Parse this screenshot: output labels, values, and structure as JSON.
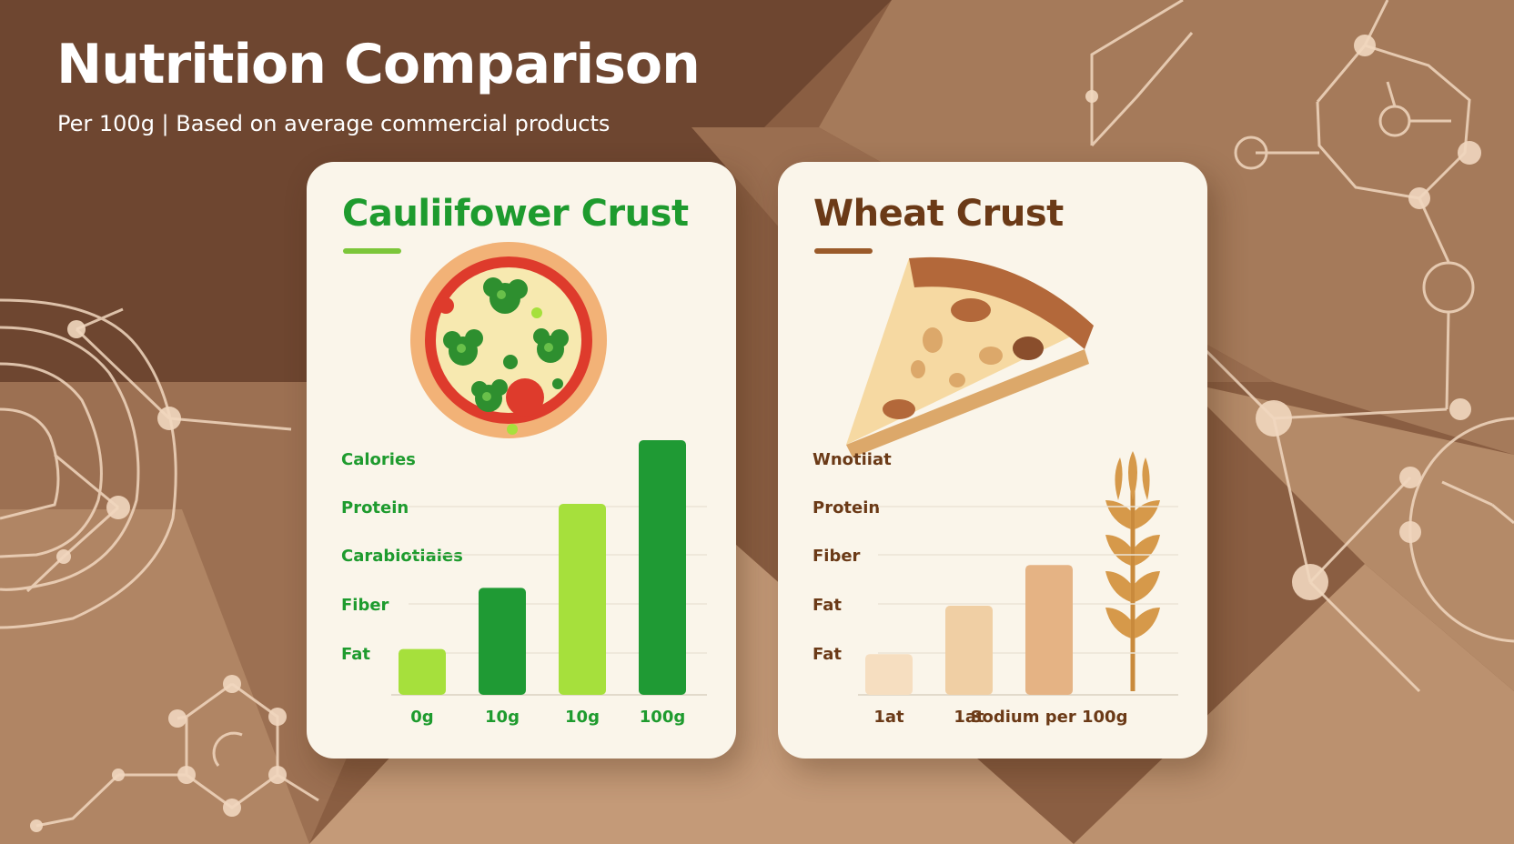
{
  "header": {
    "title": "Nutrition Comparison",
    "subtitle": "Per 100g | Based on average commercial products"
  },
  "colors": {
    "bg_dark": "#6e4630",
    "bg_light": "#c89b78",
    "card_bg": "#faf5ea",
    "cauliflower_title": "#1e9b2e",
    "wheat_title": "#6b3a17",
    "bar_light_green": "#a6e03c",
    "bar_dark_green": "#1f9a34",
    "bar_wheat_1": "#f6dec0",
    "bar_wheat_2": "#f0cfa4",
    "bar_wheat_3": "#e5b384"
  },
  "cards": {
    "cauliflower": {
      "title": "Cauliifower Crust",
      "icon": "pizza-icon"
    },
    "wheat": {
      "title": "Wheat Crust",
      "icon": "pizza-slice-icon",
      "decor_icon": "wheat-icon"
    }
  },
  "chart_data": [
    {
      "type": "bar",
      "title": "Cauliifower Crust",
      "row_labels": [
        "Calories",
        "Protein",
        "Carabiotiaies",
        "Fiber",
        "Fat"
      ],
      "categories": [
        "0g",
        "10g",
        "10g",
        "100g"
      ],
      "values": [
        0.18,
        0.42,
        0.75,
        1.0
      ],
      "bar_colors": [
        "#a6e03c",
        "#1f9a34",
        "#a6e03c",
        "#1f9a34"
      ],
      "gridlines": true
    },
    {
      "type": "bar",
      "title": "Wheat Crust",
      "row_labels": [
        "Wnotiiat",
        "Protein",
        "Fiber",
        "Fat",
        "Fat"
      ],
      "categories": [
        "1at",
        "1at",
        "Sodium per 100g"
      ],
      "values": [
        0.16,
        0.35,
        0.51
      ],
      "bar_colors": [
        "#f6dec0",
        "#f0cfa4",
        "#e5b384"
      ],
      "gridlines": true
    }
  ]
}
